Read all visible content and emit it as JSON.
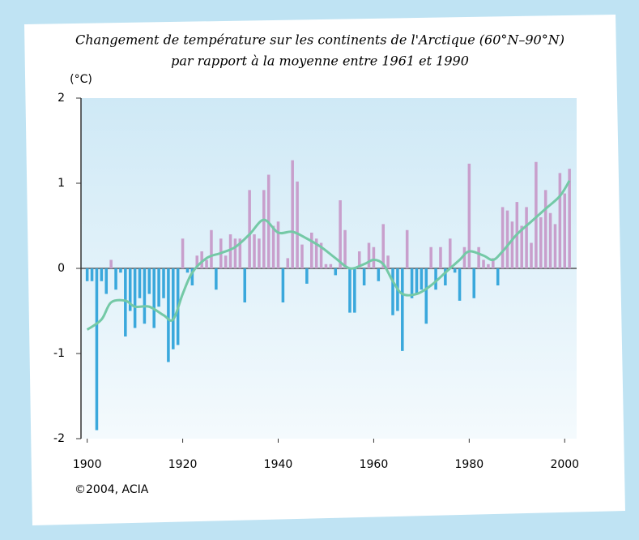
{
  "chart_data": {
    "type": "bar",
    "title": "Changement de température sur les continents de l'Arctique (60°N–90°N)",
    "subtitle": "par rapport à la moyenne entre 1961 et 1990",
    "y_label": "(°C)",
    "credit": "©2004, ACIA",
    "x": [
      1900,
      1901,
      1902,
      1903,
      1904,
      1905,
      1906,
      1907,
      1908,
      1909,
      1910,
      1911,
      1912,
      1913,
      1914,
      1915,
      1916,
      1917,
      1918,
      1919,
      1920,
      1921,
      1922,
      1923,
      1924,
      1925,
      1926,
      1927,
      1928,
      1929,
      1930,
      1931,
      1932,
      1933,
      1934,
      1935,
      1936,
      1937,
      1938,
      1939,
      1940,
      1941,
      1942,
      1943,
      1944,
      1945,
      1946,
      1947,
      1948,
      1949,
      1950,
      1951,
      1952,
      1953,
      1954,
      1955,
      1956,
      1957,
      1958,
      1959,
      1960,
      1961,
      1962,
      1963,
      1964,
      1965,
      1966,
      1967,
      1968,
      1969,
      1970,
      1971,
      1972,
      1973,
      1974,
      1975,
      1976,
      1977,
      1978,
      1979,
      1980,
      1981,
      1982,
      1983,
      1984,
      1985,
      1986,
      1987,
      1988,
      1989,
      1990,
      1991,
      1992,
      1993,
      1994,
      1995,
      1996,
      1997,
      1998,
      1999,
      2000,
      2001
    ],
    "values": [
      -0.15,
      -0.15,
      -1.9,
      -0.15,
      -0.3,
      0.1,
      -0.25,
      -0.05,
      -0.8,
      -0.5,
      -0.7,
      -0.35,
      -0.65,
      -0.3,
      -0.7,
      -0.45,
      -0.35,
      -1.1,
      -0.95,
      -0.9,
      0.35,
      -0.05,
      -0.2,
      0.15,
      0.2,
      0.1,
      0.45,
      -0.25,
      0.35,
      0.15,
      0.4,
      0.35,
      0.35,
      -0.4,
      0.92,
      0.4,
      0.35,
      0.92,
      1.1,
      0.5,
      0.55,
      -0.4,
      0.12,
      1.27,
      1.02,
      0.28,
      -0.18,
      0.42,
      0.35,
      0.3,
      0.05,
      0.05,
      -0.08,
      0.8,
      0.45,
      -0.52,
      -0.52,
      0.2,
      -0.2,
      0.3,
      0.25,
      -0.15,
      0.52,
      0.15,
      -0.55,
      -0.5,
      -0.97,
      0.45,
      -0.35,
      -0.3,
      -0.25,
      -0.65,
      0.25,
      -0.25,
      0.25,
      -0.2,
      0.35,
      -0.05,
      -0.38,
      0.25,
      1.23,
      -0.35,
      0.25,
      0.1,
      0.05,
      0.12,
      -0.2,
      0.72,
      0.68,
      0.55,
      0.78,
      0.5,
      0.72,
      0.3,
      1.25,
      0.6,
      0.92,
      0.65,
      0.52,
      1.12,
      0.88,
      1.17
    ],
    "colors": {
      "positive": "#c89fcc",
      "negative": "#3aa8dc"
    },
    "line": {
      "color": "#74c9a6",
      "x": [
        1900,
        1903,
        1905,
        1908,
        1910,
        1913,
        1916,
        1918,
        1920,
        1922,
        1925,
        1928,
        1931,
        1934,
        1937,
        1940,
        1943,
        1946,
        1949,
        1952,
        1955,
        1958,
        1960,
        1962,
        1964,
        1966,
        1969,
        1972,
        1975,
        1978,
        1980,
        1983,
        1985,
        1987,
        1990,
        1993,
        1996,
        1999,
        2001
      ],
      "values": [
        -0.72,
        -0.6,
        -0.4,
        -0.38,
        -0.45,
        -0.45,
        -0.55,
        -0.6,
        -0.3,
        -0.05,
        0.12,
        0.18,
        0.25,
        0.4,
        0.57,
        0.42,
        0.43,
        0.35,
        0.25,
        0.12,
        0.0,
        0.05,
        0.1,
        0.05,
        -0.15,
        -0.3,
        -0.3,
        -0.2,
        -0.05,
        0.1,
        0.2,
        0.15,
        0.1,
        0.2,
        0.4,
        0.55,
        0.7,
        0.85,
        1.03
      ]
    },
    "xlim": [
      1898.7,
      2002.5
    ],
    "ylim": [
      -2,
      2
    ],
    "yticks": [
      2,
      1,
      0,
      -1,
      -2
    ],
    "xticks": [
      1900,
      1920,
      1940,
      1960,
      1980,
      2000
    ]
  }
}
